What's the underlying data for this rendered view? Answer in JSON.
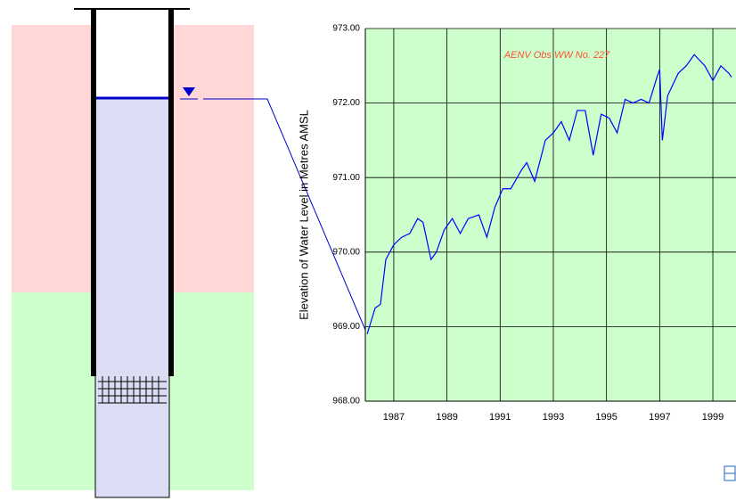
{
  "chart_data": {
    "type": "line",
    "annotation": "AENV Obs WW No. 227",
    "y_label": "Elevation of Water Level in Metres AMSL",
    "xlim": [
      1985.93,
      1999.87
    ],
    "ylim": [
      968,
      973
    ],
    "xticks": [
      1987,
      1989,
      1991,
      1993,
      1995,
      1997,
      1999
    ],
    "yticks": [
      {
        "value": 968,
        "label": "968.00"
      },
      {
        "value": 969,
        "label": "969.00"
      },
      {
        "value": 970,
        "label": "970.00"
      },
      {
        "value": 971,
        "label": "971.00"
      },
      {
        "value": 972,
        "label": "972.00"
      },
      {
        "value": 973,
        "label": "973.00"
      }
    ],
    "grid": true,
    "background": "#ccffcc",
    "series": [
      {
        "color": "#0000ff",
        "x": [
          1986.0,
          1986.3,
          1986.5,
          1986.7,
          1987.0,
          1987.3,
          1987.6,
          1987.9,
          1988.1,
          1988.4,
          1988.6,
          1988.9,
          1989.2,
          1989.5,
          1989.8,
          1990.2,
          1990.5,
          1990.8,
          1991.1,
          1991.4,
          1991.8,
          1992.0,
          1992.3,
          1992.7,
          1993.0,
          1993.3,
          1993.6,
          1993.9,
          1994.2,
          1994.5,
          1994.8,
          1995.1,
          1995.4,
          1995.7,
          1996.0,
          1996.3,
          1996.6,
          1996.9,
          1997.0,
          1997.1,
          1997.3,
          1997.7,
          1998.0,
          1998.3,
          1998.7,
          1999.0,
          1999.3,
          1999.6,
          1999.7
        ],
        "values": [
          968.9,
          969.25,
          969.3,
          969.9,
          970.1,
          970.2,
          970.25,
          970.45,
          970.4,
          969.9,
          970.0,
          970.3,
          970.45,
          970.25,
          970.45,
          970.5,
          970.2,
          970.6,
          970.85,
          970.85,
          971.1,
          971.2,
          970.95,
          971.5,
          971.6,
          971.75,
          971.5,
          971.9,
          971.9,
          971.3,
          971.85,
          971.8,
          971.6,
          972.05,
          972.0,
          972.05,
          972.0,
          972.35,
          972.45,
          971.5,
          972.1,
          972.4,
          972.5,
          972.65,
          972.5,
          972.3,
          972.5,
          972.4,
          972.35
        ]
      }
    ]
  }
}
